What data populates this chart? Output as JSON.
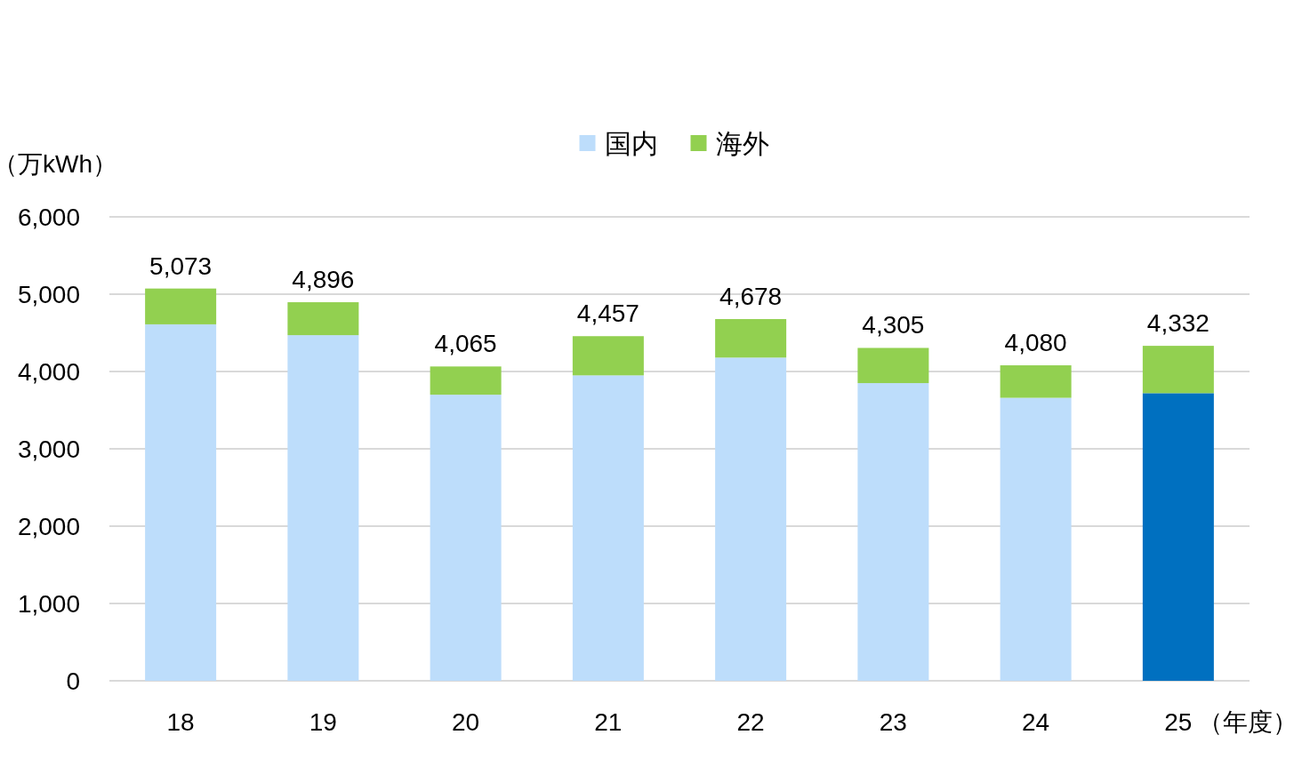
{
  "chart_data": {
    "type": "bar",
    "stacked": true,
    "categories": [
      "18",
      "19",
      "20",
      "21",
      "22",
      "23",
      "24",
      "25"
    ],
    "series": [
      {
        "name": "国内",
        "color": "#bdddfb",
        "colors": [
          "#bdddfb",
          "#bdddfb",
          "#bdddfb",
          "#bdddfb",
          "#bdddfb",
          "#bdddfb",
          "#bdddfb",
          "#0070c0"
        ],
        "values": [
          4610,
          4470,
          3700,
          3950,
          4180,
          3850,
          3660,
          3720
        ]
      },
      {
        "name": "海外",
        "color": "#92d050",
        "values": [
          463,
          426,
          365,
          507,
          498,
          455,
          420,
          612
        ]
      }
    ],
    "totals": [
      "5,073",
      "4,896",
      "4,065",
      "4,457",
      "4,678",
      "4,305",
      "4,080",
      "4,332"
    ],
    "ylim": [
      0,
      6000
    ],
    "yticks": [
      0,
      {
        "value": 1000,
        "label": "1,000"
      },
      {
        "value": 2000,
        "label": "2,000"
      },
      {
        "value": 3000,
        "label": "3,000"
      },
      {
        "value": 4000,
        "label": "4,000"
      },
      {
        "value": 5000,
        "label": "5,000"
      },
      {
        "value": 6000,
        "label": "6,000"
      }
    ],
    "grid": "y",
    "legend": "top",
    "ylabel": "（万kWh）",
    "xlabel": "（年度）"
  }
}
